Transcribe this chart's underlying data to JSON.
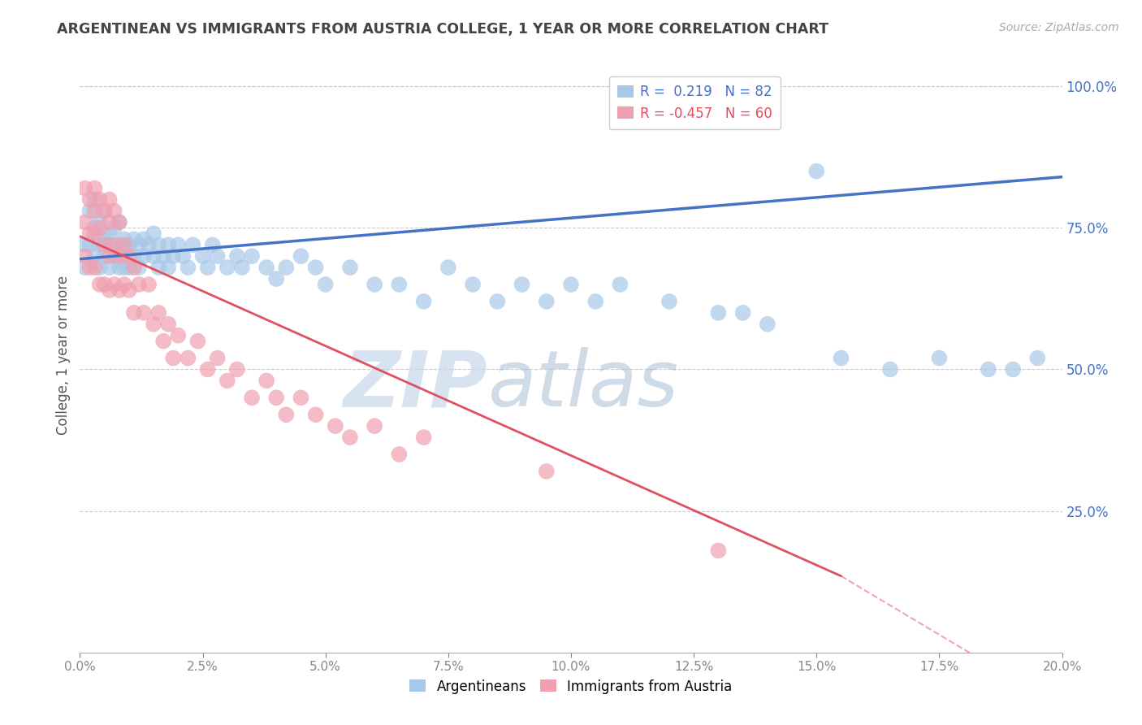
{
  "title": "ARGENTINEAN VS IMMIGRANTS FROM AUSTRIA COLLEGE, 1 YEAR OR MORE CORRELATION CHART",
  "source_text": "Source: ZipAtlas.com",
  "ylabel": "College, 1 year or more",
  "ytick_labels": [
    "100.0%",
    "75.0%",
    "50.0%",
    "25.0%"
  ],
  "ytick_values": [
    1.0,
    0.75,
    0.5,
    0.25
  ],
  "legend_blue_label": "R =  0.219   N = 82",
  "legend_pink_label": "R = -0.457   N = 60",
  "legend_blue_color": "#4472c4",
  "legend_pink_color": "#e05060",
  "series_argentinean": {
    "color": "#a8c8e8",
    "edge_color": "none",
    "x": [
      0.001,
      0.001,
      0.002,
      0.002,
      0.003,
      0.003,
      0.003,
      0.004,
      0.004,
      0.004,
      0.005,
      0.005,
      0.005,
      0.006,
      0.006,
      0.006,
      0.007,
      0.007,
      0.008,
      0.008,
      0.008,
      0.009,
      0.009,
      0.009,
      0.01,
      0.01,
      0.011,
      0.011,
      0.012,
      0.012,
      0.013,
      0.013,
      0.014,
      0.015,
      0.015,
      0.016,
      0.016,
      0.017,
      0.018,
      0.018,
      0.019,
      0.02,
      0.021,
      0.022,
      0.023,
      0.025,
      0.026,
      0.027,
      0.028,
      0.03,
      0.032,
      0.033,
      0.035,
      0.038,
      0.04,
      0.042,
      0.045,
      0.048,
      0.05,
      0.055,
      0.06,
      0.065,
      0.07,
      0.075,
      0.08,
      0.085,
      0.09,
      0.095,
      0.1,
      0.105,
      0.11,
      0.12,
      0.13,
      0.14,
      0.155,
      0.165,
      0.175,
      0.185,
      0.19,
      0.195,
      0.15,
      0.135
    ],
    "y": [
      0.72,
      0.68,
      0.78,
      0.72,
      0.75,
      0.7,
      0.8,
      0.72,
      0.68,
      0.76,
      0.7,
      0.73,
      0.78,
      0.72,
      0.68,
      0.74,
      0.7,
      0.75,
      0.72,
      0.68,
      0.76,
      0.7,
      0.73,
      0.68,
      0.72,
      0.68,
      0.7,
      0.73,
      0.72,
      0.68,
      0.7,
      0.73,
      0.72,
      0.7,
      0.74,
      0.68,
      0.72,
      0.7,
      0.72,
      0.68,
      0.7,
      0.72,
      0.7,
      0.68,
      0.72,
      0.7,
      0.68,
      0.72,
      0.7,
      0.68,
      0.7,
      0.68,
      0.7,
      0.68,
      0.66,
      0.68,
      0.7,
      0.68,
      0.65,
      0.68,
      0.65,
      0.65,
      0.62,
      0.68,
      0.65,
      0.62,
      0.65,
      0.62,
      0.65,
      0.62,
      0.65,
      0.62,
      0.6,
      0.58,
      0.52,
      0.5,
      0.52,
      0.5,
      0.5,
      0.52,
      0.85,
      0.6
    ]
  },
  "series_austria": {
    "color": "#f0a0b0",
    "edge_color": "none",
    "x": [
      0.001,
      0.001,
      0.001,
      0.002,
      0.002,
      0.002,
      0.003,
      0.003,
      0.003,
      0.003,
      0.004,
      0.004,
      0.004,
      0.005,
      0.005,
      0.005,
      0.006,
      0.006,
      0.006,
      0.006,
      0.007,
      0.007,
      0.007,
      0.008,
      0.008,
      0.008,
      0.009,
      0.009,
      0.01,
      0.01,
      0.011,
      0.011,
      0.012,
      0.013,
      0.014,
      0.015,
      0.016,
      0.017,
      0.018,
      0.019,
      0.02,
      0.022,
      0.024,
      0.026,
      0.028,
      0.03,
      0.032,
      0.035,
      0.038,
      0.04,
      0.042,
      0.045,
      0.048,
      0.052,
      0.055,
      0.06,
      0.065,
      0.07,
      0.095,
      0.13
    ],
    "y": [
      0.82,
      0.76,
      0.7,
      0.8,
      0.74,
      0.68,
      0.82,
      0.78,
      0.74,
      0.68,
      0.8,
      0.75,
      0.65,
      0.78,
      0.72,
      0.65,
      0.8,
      0.76,
      0.7,
      0.64,
      0.78,
      0.72,
      0.65,
      0.76,
      0.7,
      0.64,
      0.72,
      0.65,
      0.7,
      0.64,
      0.68,
      0.6,
      0.65,
      0.6,
      0.65,
      0.58,
      0.6,
      0.55,
      0.58,
      0.52,
      0.56,
      0.52,
      0.55,
      0.5,
      0.52,
      0.48,
      0.5,
      0.45,
      0.48,
      0.45,
      0.42,
      0.45,
      0.42,
      0.4,
      0.38,
      0.4,
      0.35,
      0.38,
      0.32,
      0.18
    ]
  },
  "xmin": 0.0,
  "xmax": 0.2,
  "ymin": 0.0,
  "ymax": 1.05,
  "blue_trend_x": [
    0.0,
    0.2
  ],
  "blue_trend_y": [
    0.695,
    0.84
  ],
  "pink_trend_x": [
    0.0,
    0.155
  ],
  "pink_trend_y": [
    0.735,
    0.135
  ],
  "background_color": "#ffffff",
  "grid_color": "#cccccc",
  "watermark_zip_color": "#b0bfd8",
  "watermark_atlas_color": "#7090b8"
}
